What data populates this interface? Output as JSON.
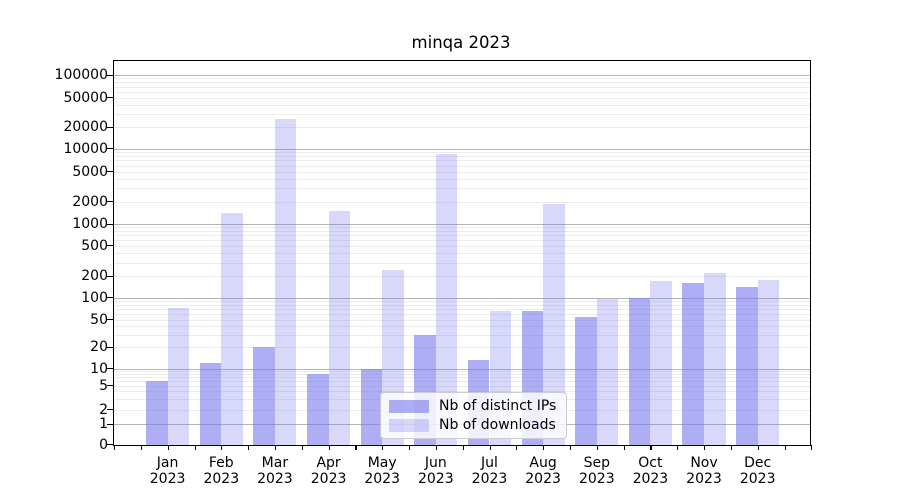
{
  "chart_data": {
    "type": "bar",
    "title": "minqa 2023",
    "categories": [
      "Jan",
      "Feb",
      "Mar",
      "Apr",
      "May",
      "Jun",
      "Jul",
      "Aug",
      "Sep",
      "Oct",
      "Nov",
      "Dec"
    ],
    "category_sublabel": "2023",
    "series": [
      {
        "name": "Nb of distinct IPs",
        "color": "rgba(115,115,238,0.58)",
        "values": [
          6,
          12,
          20,
          8,
          10,
          30,
          13,
          65,
          55,
          100,
          160,
          140
        ]
      },
      {
        "name": "Nb of downloads",
        "color": "rgba(115,115,238,0.28)",
        "values": [
          72,
          1400,
          26000,
          1500,
          240,
          8500,
          65,
          1850,
          95,
          170,
          220,
          175
        ]
      }
    ],
    "y_ticks": [
      0,
      1,
      2,
      5,
      10,
      20,
      50,
      100,
      200,
      500,
      1000,
      2000,
      5000,
      10000,
      20000,
      50000,
      100000
    ],
    "y_scale": "symlog",
    "y_major_lines": [
      1,
      10,
      100,
      1000,
      10000,
      100000
    ],
    "grid": true,
    "legend_position": "lower center",
    "colors": {
      "axis": "#000000",
      "major_grid": "#b5b5b5",
      "minor_grid": "#ececec",
      "bar_base": "#7373ee"
    }
  }
}
